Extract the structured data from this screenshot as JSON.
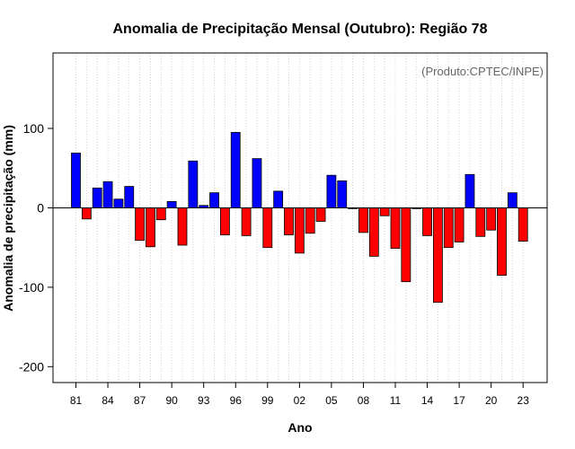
{
  "chart_data": {
    "type": "bar",
    "title": "Anomalia de Precipitação Mensal (Outubro): Região 78",
    "xlabel": "Ano",
    "ylabel": "Anomalia de precipitação (mm)",
    "credit": "(Produto:CPTEC/INPE)",
    "ylim": [
      -220,
      195
    ],
    "yticks": [
      -200,
      -100,
      0,
      100
    ],
    "ytick_labels": [
      "-200",
      "-100",
      "0",
      "100"
    ],
    "years": [
      1981,
      1982,
      1983,
      1984,
      1985,
      1986,
      1987,
      1988,
      1989,
      1990,
      1991,
      1992,
      1993,
      1994,
      1995,
      1996,
      1997,
      1998,
      1999,
      2000,
      2001,
      2002,
      2003,
      2004,
      2005,
      2006,
      2007,
      2008,
      2009,
      2010,
      2011,
      2012,
      2013,
      2014,
      2015,
      2016,
      2017,
      2018,
      2019,
      2020,
      2021,
      2022,
      2023
    ],
    "values": [
      69,
      -14,
      25,
      33,
      11,
      27,
      -41,
      -49,
      -15,
      8,
      -47,
      59,
      3,
      19,
      -34,
      95,
      -35,
      62,
      -50,
      21,
      -34,
      -57,
      -32,
      -17,
      41,
      34,
      -1,
      -31,
      -61,
      -10,
      -51,
      -93,
      -1,
      -35,
      -119,
      -50,
      -43,
      42,
      -36,
      -28,
      -85,
      19,
      -42
    ],
    "xtick_labels": [
      "81",
      "84",
      "87",
      "90",
      "93",
      "96",
      "99",
      "02",
      "05",
      "08",
      "11",
      "14",
      "17",
      "20",
      "23"
    ],
    "xtick_years": [
      1981,
      1984,
      1987,
      1990,
      1993,
      1996,
      1999,
      2002,
      2005,
      2008,
      2011,
      2014,
      2017,
      2020,
      2023
    ],
    "positive_color": "#0000ff",
    "negative_color": "#ff0000",
    "grid": "vertical dotted"
  }
}
